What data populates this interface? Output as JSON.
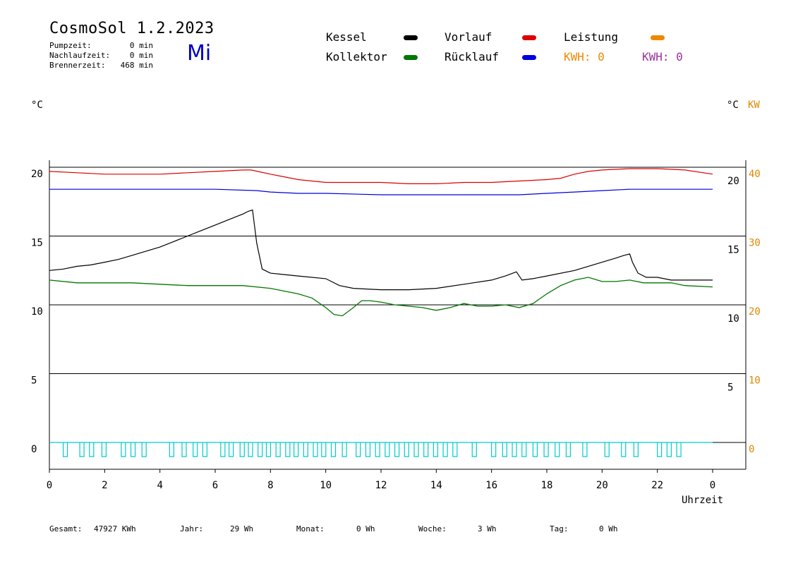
{
  "header": {
    "title": "CosmoSol 1.2.2023",
    "weekday": "Mi",
    "pump_label": "Pumpzeit:",
    "pump_value": "0 min",
    "followup_label": "Nachlaufzeit:",
    "followup_value": "0 min",
    "burner_label": "Brennerzeit:",
    "burner_value": "468 min"
  },
  "legend": {
    "kessel": "Kessel",
    "vorlauf": "Vorlauf",
    "leistung": "Leistung",
    "kollektor": "Kollektor",
    "ruecklauf": "Rücklauf",
    "kwh1": "KWH: 0",
    "kwh2": "KWH: 0"
  },
  "axes": {
    "left_unit": "°C",
    "right_unit": "°C",
    "right_unit2": "KW",
    "xlabel": "Uhrzeit"
  },
  "colors": {
    "kessel": "#000000",
    "vorlauf": "#dd0000",
    "ruecklauf": "#0000dd",
    "kollektor": "#007700",
    "leistung": "#ee8800",
    "pump": "#00cccc",
    "kwh2": "#993399",
    "right_kw_axis": "#dd8800"
  },
  "footer": {
    "gesamt_label": "Gesamt:",
    "gesamt_value": "47927 KWh",
    "jahr_label": "Jahr:",
    "jahr_value": "29 Wh",
    "monat_label": "Monat:",
    "monat_value": "0 Wh",
    "woche_label": "Woche:",
    "woche_value": "3 Wh",
    "tag_label": "Tag:",
    "tag_value": "0 Wh"
  },
  "chart_data": {
    "type": "line",
    "xlabel": "Uhrzeit",
    "ylabel": "°C",
    "x_ticks": [
      "0",
      "2",
      "4",
      "6",
      "8",
      "10",
      "12",
      "14",
      "16",
      "18",
      "20",
      "22",
      "0"
    ],
    "x_range": [
      0,
      24
    ],
    "y_left_range": [
      -1.5,
      21
    ],
    "y_left_ticks": [
      "20",
      "15",
      "10",
      "5",
      "0"
    ],
    "y_right_ticks": [
      "20",
      "15",
      "10",
      "5"
    ],
    "y_right_kw_ticks": [
      "40",
      "30",
      "20",
      "10",
      "0"
    ],
    "grid_y": [
      20,
      15,
      10,
      5,
      0
    ],
    "series": [
      {
        "name": "Vorlauf",
        "color": "#dd0000",
        "x": [
          0,
          1,
          2,
          3,
          4,
          5,
          6,
          7,
          7.3,
          8,
          8.5,
          9,
          10,
          11,
          12,
          13,
          14,
          15,
          16,
          17,
          18,
          18.5,
          19,
          19.5,
          20,
          21,
          22,
          23,
          24
        ],
        "y": [
          19.7,
          19.6,
          19.5,
          19.5,
          19.5,
          19.6,
          19.7,
          19.8,
          19.8,
          19.5,
          19.3,
          19.1,
          18.9,
          18.9,
          18.9,
          18.8,
          18.8,
          18.9,
          18.9,
          19.0,
          19.1,
          19.2,
          19.5,
          19.7,
          19.8,
          19.9,
          19.9,
          19.8,
          19.5
        ]
      },
      {
        "name": "Rücklauf",
        "color": "#0000dd",
        "x": [
          0,
          2,
          4,
          6,
          7.5,
          8,
          9,
          10,
          12,
          14,
          16,
          17,
          18,
          19,
          20,
          21,
          22,
          23,
          24
        ],
        "y": [
          18.4,
          18.4,
          18.4,
          18.4,
          18.3,
          18.2,
          18.1,
          18.1,
          18.0,
          18.0,
          18.0,
          18.0,
          18.1,
          18.2,
          18.3,
          18.4,
          18.4,
          18.4,
          18.4
        ]
      },
      {
        "name": "Kessel",
        "color": "#000000",
        "x": [
          0,
          0.5,
          1,
          1.5,
          2,
          2.5,
          3,
          3.5,
          4,
          4.5,
          5,
          5.5,
          6,
          6.5,
          7,
          7.2,
          7.35,
          7.5,
          7.7,
          8,
          8.5,
          9,
          10,
          10.5,
          11,
          12,
          13,
          14,
          15,
          16,
          16.5,
          16.9,
          17.1,
          17.5,
          18,
          19,
          19.5,
          20,
          20.5,
          20.8,
          21,
          21.1,
          21.3,
          21.6,
          22,
          22.5,
          23,
          24
        ],
        "y": [
          12.5,
          12.6,
          12.8,
          12.9,
          13.1,
          13.3,
          13.6,
          13.9,
          14.2,
          14.6,
          15.0,
          15.4,
          15.8,
          16.2,
          16.6,
          16.8,
          16.9,
          14.5,
          12.6,
          12.3,
          12.2,
          12.1,
          11.9,
          11.4,
          11.2,
          11.1,
          11.1,
          11.2,
          11.5,
          11.8,
          12.1,
          12.4,
          11.8,
          11.9,
          12.1,
          12.5,
          12.8,
          13.1,
          13.4,
          13.6,
          13.7,
          13.1,
          12.3,
          12.0,
          12.0,
          11.8,
          11.8,
          11.8
        ]
      },
      {
        "name": "Kollektor",
        "color": "#007700",
        "x": [
          0,
          1,
          2,
          3,
          4,
          5,
          6,
          7,
          8,
          8.5,
          9,
          9.5,
          10,
          10.3,
          10.6,
          11,
          11.3,
          11.6,
          12,
          12.5,
          13,
          13.5,
          14,
          14.5,
          15,
          15.5,
          16,
          16.5,
          17,
          17.5,
          18,
          18.5,
          19,
          19.5,
          20,
          20.5,
          21,
          21.5,
          22,
          22.5,
          23,
          24
        ],
        "y": [
          11.8,
          11.6,
          11.6,
          11.6,
          11.5,
          11.4,
          11.4,
          11.4,
          11.2,
          11.0,
          10.8,
          10.5,
          9.8,
          9.3,
          9.2,
          9.8,
          10.3,
          10.3,
          10.2,
          10.0,
          9.9,
          9.8,
          9.6,
          9.8,
          10.1,
          9.9,
          9.9,
          10.0,
          9.8,
          10.1,
          10.8,
          11.4,
          11.8,
          12.0,
          11.7,
          11.7,
          11.8,
          11.6,
          11.6,
          11.6,
          11.4,
          11.3
        ]
      },
      {
        "name": "Leistung",
        "color": "#ee8800",
        "x": [
          0,
          24
        ],
        "y": [
          0,
          0
        ]
      }
    ]
  }
}
